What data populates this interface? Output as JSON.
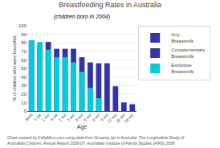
{
  "chart_data": {
    "type": "bar",
    "title": "Breastfeeding Rates in Australia",
    "subtitle": "(children born in 2004)",
    "xlabel": "Age",
    "ylabel": "% of children who were breastfed",
    "categories": [
      "Birth",
      "1 wk",
      "1 mo",
      "6 wk",
      "2 mo",
      "3 mo",
      "4 mo",
      "5 mo",
      "6 mo",
      "9 mo",
      "12 mo",
      "18 mo",
      "24 mo"
    ],
    "series": [
      {
        "name": "Any\nBreastmilk",
        "color": "#3333aa",
        "values": [
          83,
          77,
          81,
          73,
          73,
          73,
          63,
          57,
          56,
          56,
          29,
          10,
          8
        ]
      },
      {
        "name": "Complementary\nBreastmilk",
        "color": "#3333aa",
        "values": [
          null,
          null,
          null,
          null,
          null,
          null,
          null,
          null,
          null,
          null,
          null,
          null,
          null
        ]
      },
      {
        "name": "Exclusive\nBreastmilk",
        "color": "#00ccdd",
        "values": [
          83,
          81,
          72,
          63,
          63,
          57,
          46,
          27,
          15,
          0,
          0,
          0,
          0
        ]
      }
    ],
    "ylim": [
      0,
      100
    ],
    "yticks": [
      0,
      10,
      20,
      30,
      40,
      50,
      60,
      70,
      80,
      90,
      100
    ],
    "grid": true,
    "stacked": false,
    "legend": "right",
    "annotations": [
      "Chart created by KellyMom.com using data from Growing Up in Australia: The Longitudinal Study of\nAustralian Children, Annual Report 2006-07. Australian Institute of Family Studies (AIFS) 2008."
    ]
  }
}
